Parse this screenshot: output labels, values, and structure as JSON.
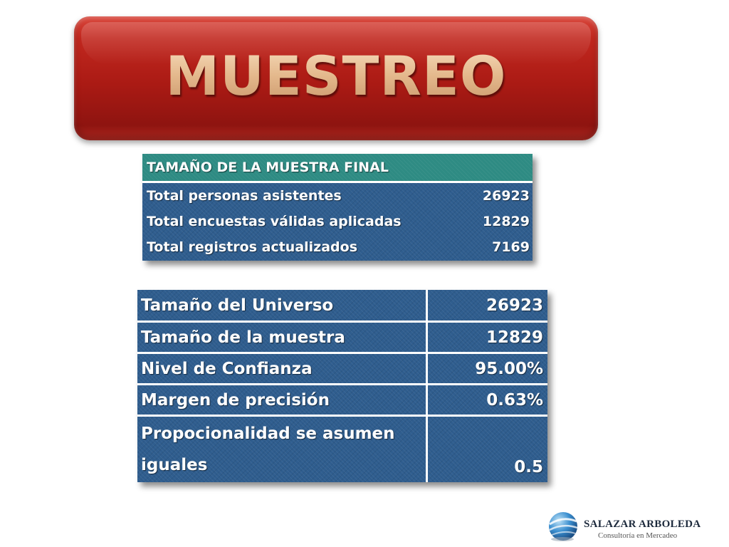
{
  "title": "MUESTREO",
  "sample_table": {
    "header": "TAMAÑO DE LA MUESTRA FINAL",
    "rows": [
      {
        "label": "Total personas asistentes",
        "value": "26923"
      },
      {
        "label": "Total encuestas válidas aplicadas",
        "value": "12829"
      },
      {
        "label": "Total registros actualizados",
        "value": "7169"
      }
    ]
  },
  "parameters_table": {
    "rows": [
      {
        "label": "Tamaño del Universo",
        "value": "26923"
      },
      {
        "label": "Tamaño de la muestra",
        "value": "12829"
      },
      {
        "label": "Nivel de Confianza",
        "value": "95.00%"
      },
      {
        "label": "Margen de precisión",
        "value": "0.63%"
      },
      {
        "label_line1": "Propocionalidad se asumen",
        "label_line2": "iguales",
        "value": "0.5"
      }
    ]
  },
  "logo": {
    "name": "SALAZAR ARBOLEDA",
    "tagline": "Consultoría en Mercadeo",
    "icon": "globe-icon"
  },
  "colors": {
    "banner_red": "#aa1a14",
    "title_gold": "#e4b88c",
    "table_blue": "#2f5d8e",
    "header_teal": "#2e8b83"
  }
}
